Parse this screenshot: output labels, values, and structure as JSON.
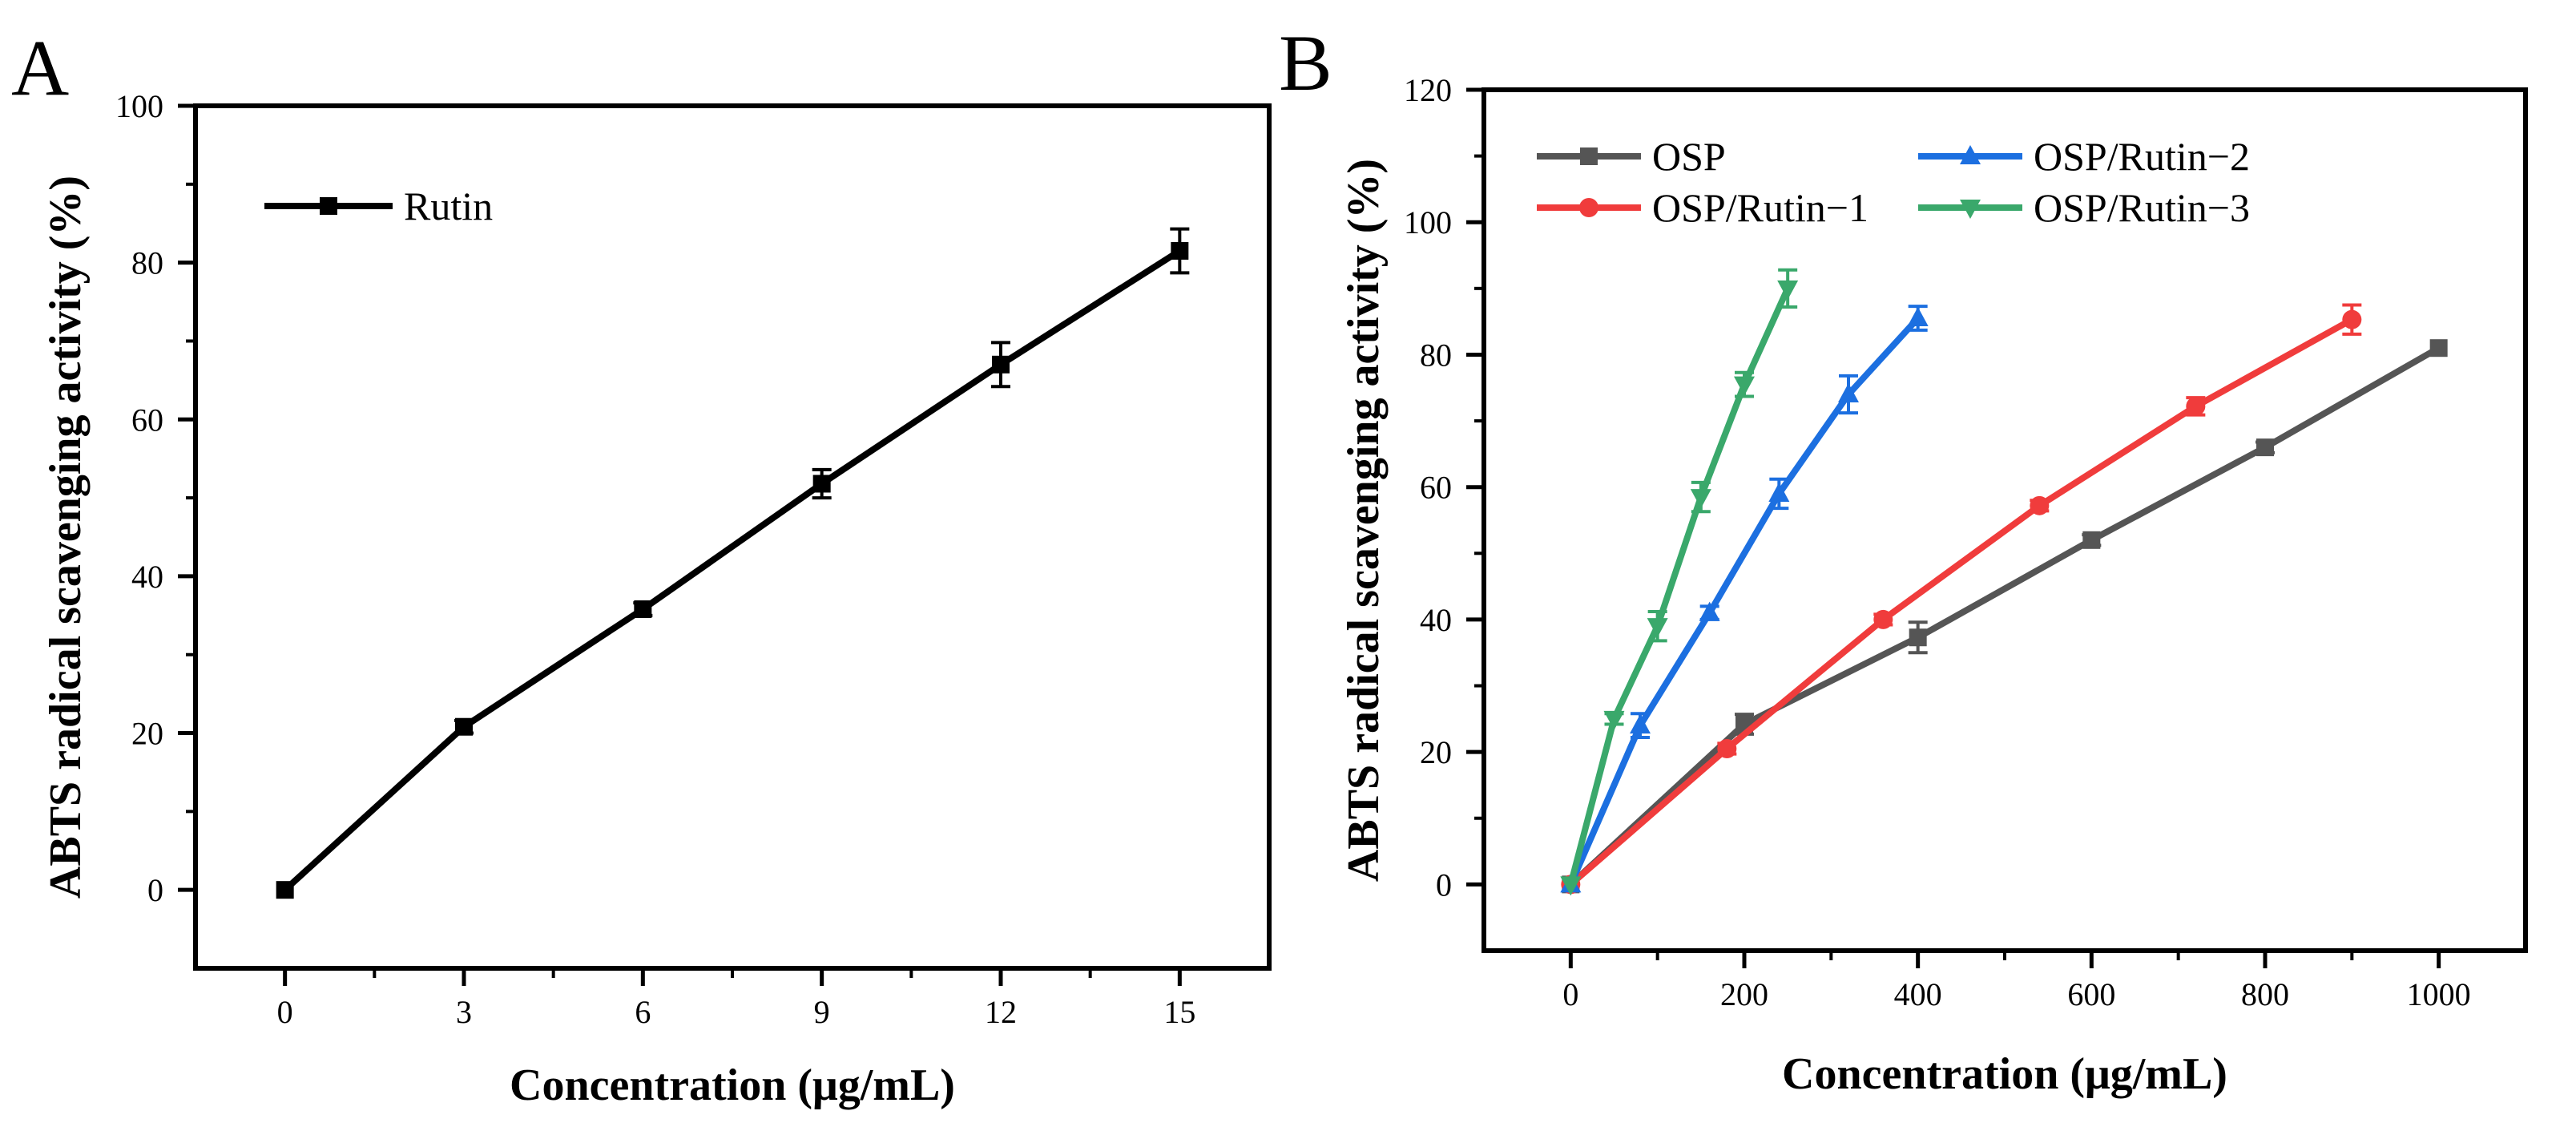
{
  "chart_data": [
    {
      "panel": "A",
      "type": "line",
      "xlabel": "Concentration (μg/mL)",
      "ylabel": "ABTS radical scavenging activity (%)",
      "xlim": [
        -1.5,
        16.5
      ],
      "ylim": [
        -10,
        100
      ],
      "xticks": [
        0,
        3,
        6,
        9,
        12,
        15
      ],
      "yticks": [
        0,
        20,
        40,
        60,
        80,
        100
      ],
      "grid": false,
      "legend_position": "top-left",
      "series": [
        {
          "name": "Rutin",
          "color": "#000000",
          "marker": "square",
          "x": [
            0,
            3,
            6,
            9,
            12,
            15
          ],
          "values": [
            0,
            20.8,
            35.8,
            51.8,
            67,
            81.5
          ],
          "error": [
            0.5,
            0.8,
            0.8,
            1.8,
            2.8,
            2.8
          ]
        }
      ]
    },
    {
      "panel": "B",
      "type": "line",
      "xlabel": "Concentration (μg/mL)",
      "ylabel": "ABTS radical scavenging activity (%)",
      "xlim": [
        -100,
        1100
      ],
      "ylim": [
        -10,
        120
      ],
      "xticks": [
        0,
        200,
        400,
        600,
        800,
        1000
      ],
      "yticks": [
        0,
        20,
        40,
        60,
        80,
        100,
        120
      ],
      "grid": false,
      "legend_position": "top-left",
      "series": [
        {
          "name": "OSP",
          "color": "#555555",
          "marker": "square",
          "x": [
            0,
            200,
            400,
            600,
            800,
            1000
          ],
          "values": [
            0,
            24.2,
            37.3,
            52,
            66,
            81
          ],
          "error": [
            0.5,
            1.5,
            2.3,
            0.8,
            0.8,
            0.5
          ]
        },
        {
          "name": "OSP/Rutin−1",
          "color": "#f03c3c",
          "marker": "circle",
          "x": [
            0,
            180,
            360,
            540,
            720,
            900
          ],
          "values": [
            0,
            20.5,
            40,
            57.2,
            72.2,
            85.3
          ],
          "error": [
            0.5,
            0.8,
            0.8,
            0.8,
            1.3,
            2.2
          ]
        },
        {
          "name": "OSP/Rutin−2",
          "color": "#1c6fe0",
          "marker": "triangle-up",
          "x": [
            0,
            80,
            160,
            240,
            320,
            400
          ],
          "values": [
            0,
            24,
            41,
            59,
            74,
            85.5
          ],
          "error": [
            0.5,
            1.8,
            1.0,
            2.2,
            2.8,
            1.8
          ]
        },
        {
          "name": "OSP/Rutin−3",
          "color": "#3aa86b",
          "marker": "triangle-down",
          "x": [
            0,
            50,
            100,
            150,
            200,
            250
          ],
          "values": [
            0,
            25,
            39,
            58.5,
            75.5,
            90
          ],
          "error": [
            0.5,
            0.8,
            2.2,
            2.2,
            1.8,
            2.8
          ]
        }
      ]
    }
  ]
}
